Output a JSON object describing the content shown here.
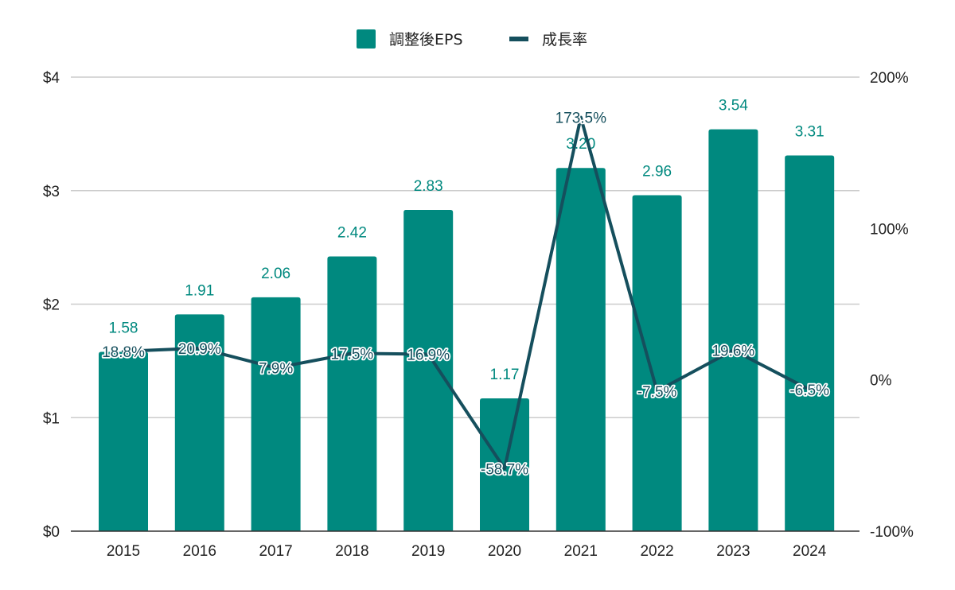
{
  "chart_data": {
    "type": "bar",
    "title": "",
    "categories": [
      "2015",
      "2016",
      "2017",
      "2018",
      "2019",
      "2020",
      "2021",
      "2022",
      "2023",
      "2024"
    ],
    "series": [
      {
        "name": "調整後EPS",
        "type": "bar",
        "axis": "left",
        "color": "#00897f",
        "values": [
          1.58,
          1.91,
          2.06,
          2.42,
          2.83,
          1.17,
          3.2,
          2.96,
          3.54,
          3.31
        ],
        "labels": [
          "1.58",
          "1.91",
          "2.06",
          "2.42",
          "2.83",
          "1.17",
          "3.20",
          "2.96",
          "3.54",
          "3.31"
        ]
      },
      {
        "name": "成長率",
        "type": "line",
        "axis": "right",
        "color": "#154f5d",
        "values": [
          18.8,
          20.9,
          7.9,
          17.5,
          16.9,
          -58.7,
          173.5,
          -7.5,
          19.6,
          -6.5
        ],
        "labels": [
          "18.8%",
          "20.9%",
          "7.9%",
          "17.5%",
          "16.9%",
          "-58.7%",
          "173.5%",
          "-7.5%",
          "19.6%",
          "-6.5%"
        ]
      }
    ],
    "left_axis": {
      "range": [
        0,
        4
      ],
      "ticks": [
        0,
        1,
        2,
        3,
        4
      ],
      "tick_labels": [
        "$0",
        "$1",
        "$2",
        "$3",
        "$4"
      ]
    },
    "right_axis": {
      "range": [
        -100,
        200
      ],
      "ticks": [
        -100,
        0,
        100,
        200
      ],
      "tick_labels": [
        "-100%",
        "0%",
        "100%",
        "200%"
      ]
    },
    "xlabel": "",
    "ylabel": "",
    "grid": true,
    "legend": {
      "position": "top-center",
      "items": [
        {
          "label": "調整後EPS",
          "marker": "square",
          "color": "#00897f"
        },
        {
          "label": "成長率",
          "marker": "line",
          "color": "#154f5d"
        }
      ]
    }
  }
}
